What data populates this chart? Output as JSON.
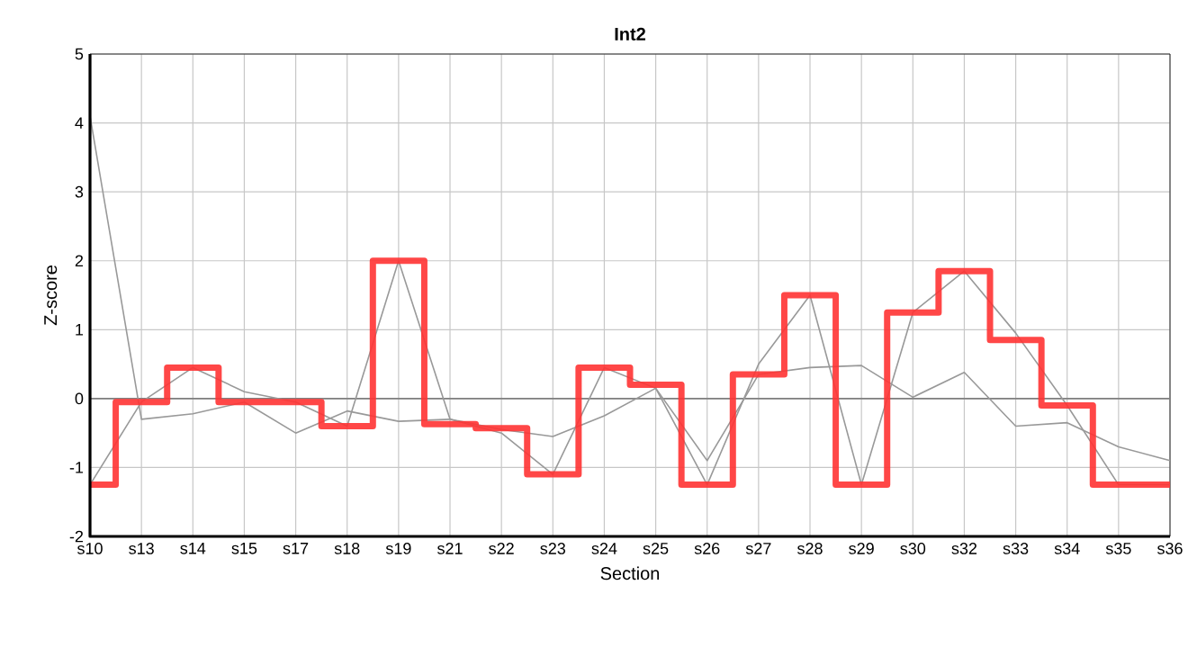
{
  "chart_data": {
    "type": "line",
    "title": "Int2",
    "xlabel": "Section",
    "ylabel": "Z-score",
    "categories": [
      "s10",
      "s13",
      "s14",
      "s15",
      "s17",
      "s18",
      "s19",
      "s21",
      "s22",
      "s23",
      "s24",
      "s25",
      "s26",
      "s27",
      "s28",
      "s29",
      "s30",
      "s32",
      "s33",
      "s34",
      "s35",
      "s36"
    ],
    "series": [
      {
        "color": "#999999",
        "values": [
          4.1,
          -0.3,
          -0.22,
          -0.05,
          -0.5,
          -0.18,
          -0.33,
          -0.3,
          -0.45,
          -0.55,
          -0.25,
          0.15,
          -0.9,
          0.35,
          0.45,
          0.48,
          0.02,
          0.38,
          -0.4,
          -0.35,
          -0.7,
          -0.9
        ]
      },
      {
        "color": "#999999",
        "values": [
          -1.25,
          -0.05,
          0.45,
          0.1,
          -0.05,
          -0.4,
          2.0,
          -0.3,
          -0.5,
          -1.1,
          0.45,
          0.15,
          -1.25,
          0.5,
          1.5,
          -1.25,
          1.25,
          1.85,
          0.95,
          -0.1,
          -1.25,
          -1.25
        ]
      },
      {
        "type": "step",
        "color": "#ff3333",
        "values": [
          -1.25,
          -0.05,
          0.45,
          -0.05,
          -0.05,
          -0.4,
          2.0,
          -0.37,
          -0.43,
          -1.1,
          0.45,
          0.2,
          -1.25,
          0.35,
          1.5,
          -1.25,
          1.25,
          1.85,
          0.85,
          -0.1,
          -1.25,
          -1.25
        ]
      }
    ],
    "ylim": [
      -2,
      5
    ],
    "yticks": [
      -2,
      -1,
      0,
      1,
      2,
      3,
      4,
      5
    ],
    "grid": true,
    "ref_lines": [
      {
        "axis": "y",
        "value": 0,
        "color": "#808080"
      }
    ]
  }
}
